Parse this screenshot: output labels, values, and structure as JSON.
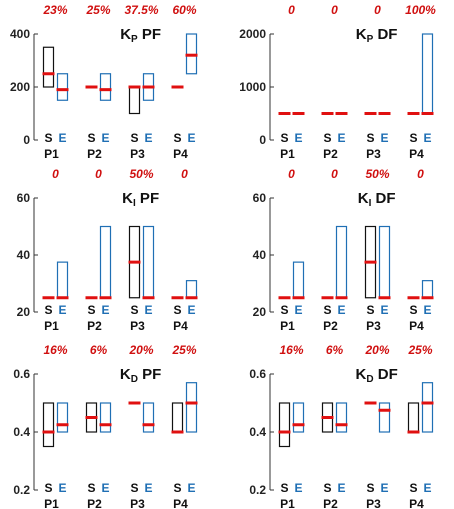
{
  "chart_data": [
    {
      "type": "range",
      "title": "K_P PF",
      "title_main": "K",
      "title_sub": "P",
      "title_rest": "PF",
      "categories": [
        "P1",
        "P2",
        "P3",
        "P4"
      ],
      "bar_labels": [
        "S",
        "E"
      ],
      "ylim": [
        0,
        400
      ],
      "yticks": [
        "0",
        "200",
        "400"
      ],
      "percent_labels": [
        "23%",
        "25%",
        "37.5%",
        "60%"
      ],
      "series": [
        {
          "name": "S",
          "ranges": [
            [
              200,
              350
            ],
            [
              200,
              200
            ],
            [
              100,
              200
            ],
            [
              200,
              200
            ]
          ],
          "center": [
            250,
            200,
            200,
            200
          ]
        },
        {
          "name": "E",
          "ranges": [
            [
              150,
              250
            ],
            [
              150,
              250
            ],
            [
              150,
              250
            ],
            [
              250,
              400
            ]
          ],
          "center": [
            190,
            190,
            200,
            320
          ]
        }
      ]
    },
    {
      "type": "range",
      "title": "K_P DF",
      "title_main": "K",
      "title_sub": "P",
      "title_rest": "DF",
      "categories": [
        "P1",
        "P2",
        "P3",
        "P4"
      ],
      "bar_labels": [
        "S",
        "E"
      ],
      "ylim": [
        0,
        2000
      ],
      "yticks": [
        "0",
        "1000",
        "2000"
      ],
      "percent_labels": [
        "0",
        "0",
        "0",
        "100%"
      ],
      "series": [
        {
          "name": "S",
          "ranges": [
            [
              500,
              500
            ],
            [
              500,
              500
            ],
            [
              500,
              500
            ],
            [
              500,
              500
            ]
          ],
          "center": [
            500,
            500,
            500,
            500
          ]
        },
        {
          "name": "E",
          "ranges": [
            [
              500,
              500
            ],
            [
              500,
              500
            ],
            [
              500,
              500
            ],
            [
              500,
              2000
            ]
          ],
          "center": [
            500,
            500,
            500,
            500
          ]
        }
      ]
    },
    {
      "type": "range",
      "title": "K_I PF",
      "title_main": "K",
      "title_sub": "I",
      "title_rest": "PF",
      "categories": [
        "P1",
        "P2",
        "P3",
        "P4"
      ],
      "bar_labels": [
        "S",
        "E"
      ],
      "ylim": [
        20,
        60
      ],
      "yticks": [
        "20",
        "40",
        "60"
      ],
      "percent_labels": [
        "0",
        "0",
        "50%",
        "0"
      ],
      "series": [
        {
          "name": "S",
          "ranges": [
            [
              25,
              25
            ],
            [
              25,
              25
            ],
            [
              25,
              50
            ],
            [
              25,
              25
            ]
          ],
          "center": [
            25,
            25,
            37.5,
            25
          ]
        },
        {
          "name": "E",
          "ranges": [
            [
              25,
              37.5
            ],
            [
              25,
              50
            ],
            [
              25,
              50
            ],
            [
              25,
              31
            ]
          ],
          "center": [
            25,
            25,
            25,
            25
          ]
        }
      ]
    },
    {
      "type": "range",
      "title": "K_I DF",
      "title_main": "K",
      "title_sub": "I",
      "title_rest": "DF",
      "categories": [
        "P1",
        "P2",
        "P3",
        "P4"
      ],
      "bar_labels": [
        "S",
        "E"
      ],
      "ylim": [
        20,
        60
      ],
      "yticks": [
        "20",
        "40",
        "60"
      ],
      "percent_labels": [
        "0",
        "0",
        "50%",
        "0"
      ],
      "series": [
        {
          "name": "S",
          "ranges": [
            [
              25,
              25
            ],
            [
              25,
              25
            ],
            [
              25,
              50
            ],
            [
              25,
              25
            ]
          ],
          "center": [
            25,
            25,
            37.5,
            25
          ]
        },
        {
          "name": "E",
          "ranges": [
            [
              25,
              37.5
            ],
            [
              25,
              50
            ],
            [
              25,
              50
            ],
            [
              25,
              31
            ]
          ],
          "center": [
            25,
            25,
            25,
            25
          ]
        }
      ]
    },
    {
      "type": "range",
      "title": "K_D PF",
      "title_main": "K",
      "title_sub": "D",
      "title_rest": "PF",
      "categories": [
        "P1",
        "P2",
        "P3",
        "P4"
      ],
      "bar_labels": [
        "S",
        "E"
      ],
      "ylim": [
        0.2,
        0.6
      ],
      "yticks": [
        "0.2",
        "0.4",
        "0.6"
      ],
      "percent_labels": [
        "16%",
        "6%",
        "20%",
        "25%"
      ],
      "series": [
        {
          "name": "S",
          "ranges": [
            [
              0.35,
              0.5
            ],
            [
              0.4,
              0.5
            ],
            [
              0.5,
              0.5
            ],
            [
              0.4,
              0.5
            ]
          ],
          "center": [
            0.4,
            0.45,
            0.5,
            0.4
          ]
        },
        {
          "name": "E",
          "ranges": [
            [
              0.4,
              0.5
            ],
            [
              0.4,
              0.5
            ],
            [
              0.4,
              0.5
            ],
            [
              0.4,
              0.57
            ]
          ],
          "center": [
            0.425,
            0.425,
            0.425,
            0.5
          ]
        }
      ]
    },
    {
      "type": "range",
      "title": "K_D DF",
      "title_main": "K",
      "title_sub": "D",
      "title_rest": "DF",
      "categories": [
        "P1",
        "P2",
        "P3",
        "P4"
      ],
      "bar_labels": [
        "S",
        "E"
      ],
      "ylim": [
        0.2,
        0.6
      ],
      "yticks": [
        "0.2",
        "0.4",
        "0.6"
      ],
      "percent_labels": [
        "16%",
        "6%",
        "20%",
        "25%"
      ],
      "series": [
        {
          "name": "S",
          "ranges": [
            [
              0.35,
              0.5
            ],
            [
              0.4,
              0.5
            ],
            [
              0.5,
              0.5
            ],
            [
              0.4,
              0.5
            ]
          ],
          "center": [
            0.4,
            0.45,
            0.5,
            0.4
          ]
        },
        {
          "name": "E",
          "ranges": [
            [
              0.4,
              0.5
            ],
            [
              0.4,
              0.5
            ],
            [
              0.4,
              0.5
            ],
            [
              0.4,
              0.57
            ]
          ],
          "center": [
            0.425,
            0.425,
            0.475,
            0.5
          ]
        }
      ]
    }
  ],
  "colors": {
    "s_box": "#111111",
    "e_box": "#1f6fb4",
    "median": "#e01010",
    "percent": "#d01010",
    "e_label": "#1f6fb4"
  }
}
